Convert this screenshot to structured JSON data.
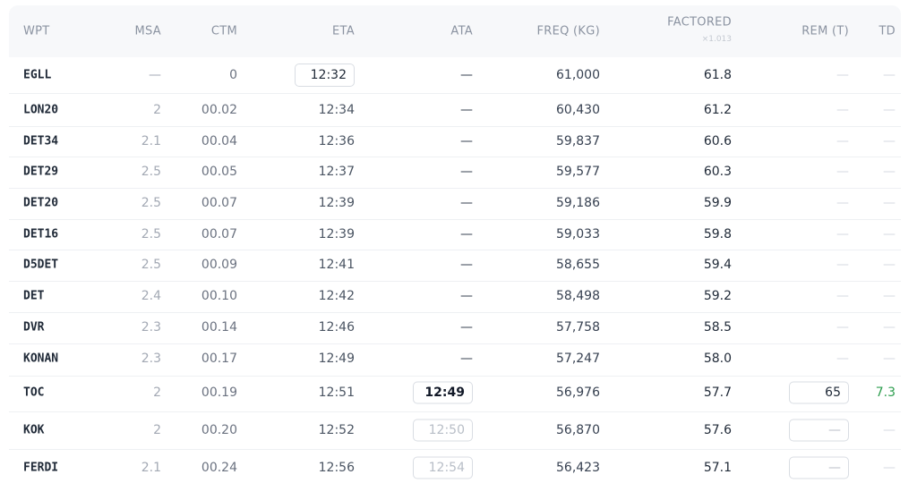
{
  "table": {
    "headers": [
      "WPT",
      "MSA",
      "CTM",
      "ETA",
      "ATA",
      "FREQ (KG)",
      "FACTORED",
      "REM (T)",
      "TD"
    ],
    "factor_note": "×1.013",
    "rows": [
      [
        "EGLL",
        "—",
        "0",
        "12:32",
        "—",
        "61,000",
        "61.8",
        "—",
        "—"
      ],
      [
        "LON20",
        "2",
        "00.02",
        "12:34",
        "—",
        "60,430",
        "61.2",
        "—",
        "—"
      ],
      [
        "DET34",
        "2.1",
        "00.04",
        "12:36",
        "—",
        "59,837",
        "60.6",
        "—",
        "—"
      ],
      [
        "DET29",
        "2.5",
        "00.05",
        "12:37",
        "—",
        "59,577",
        "60.3",
        "—",
        "—"
      ],
      [
        "DET20",
        "2.5",
        "00.07",
        "12:39",
        "—",
        "59,186",
        "59.9",
        "—",
        "—"
      ],
      [
        "DET16",
        "2.5",
        "00.07",
        "12:39",
        "—",
        "59,033",
        "59.8",
        "—",
        "—"
      ],
      [
        "D5DET",
        "2.5",
        "00.09",
        "12:41",
        "—",
        "58,655",
        "59.4",
        "—",
        "—"
      ],
      [
        "DET",
        "2.4",
        "00.10",
        "12:42",
        "—",
        "58,498",
        "59.2",
        "—",
        "—"
      ],
      [
        "DVR",
        "2.3",
        "00.14",
        "12:46",
        "—",
        "57,758",
        "58.5",
        "—",
        "—"
      ],
      [
        "KONAN",
        "2.3",
        "00.17",
        "12:49",
        "—",
        "57,247",
        "58.0",
        "—",
        "—"
      ],
      [
        "TOC",
        "2",
        "00.19",
        "12:51",
        "12:49",
        "56,976",
        "57.7",
        "65",
        "7.3"
      ],
      [
        "KOK",
        "2",
        "00.20",
        "12:52",
        "12:50",
        "56,870",
        "57.6",
        "—",
        "—"
      ],
      [
        "FERDI",
        "2.1",
        "00.24",
        "12:56",
        "12:54",
        "56,423",
        "57.1",
        "—",
        "—"
      ]
    ]
  }
}
